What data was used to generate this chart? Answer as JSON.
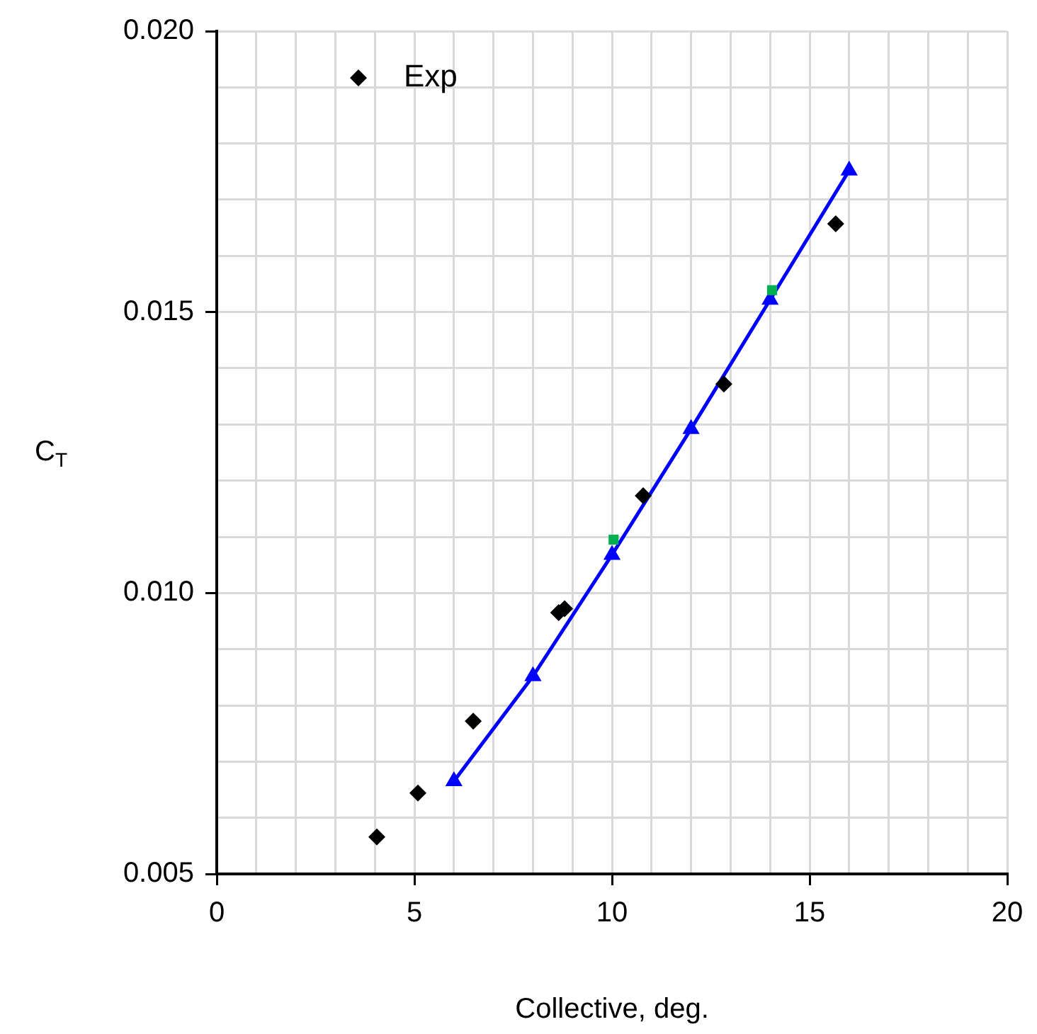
{
  "chart_data": {
    "type": "scatter",
    "xlabel": "Collective, deg.",
    "ylabel": "C$_{T}$",
    "xlim": [
      0,
      20
    ],
    "ylim": [
      0.005,
      0.02
    ],
    "xticks": [
      0,
      {
        "value": 1,
        "label": null
      },
      {
        "value": 2,
        "label": null
      },
      {
        "value": 3,
        "label": null
      },
      {
        "value": 4,
        "label": null
      },
      5,
      {
        "value": 6,
        "label": null
      },
      {
        "value": 7,
        "label": null
      },
      {
        "value": 8,
        "label": null
      },
      {
        "value": 9,
        "label": null
      },
      10,
      {
        "value": 11,
        "label": null
      },
      {
        "value": 12,
        "label": null
      },
      {
        "value": 13,
        "label": null
      },
      {
        "value": 14,
        "label": null
      },
      15,
      {
        "value": 16,
        "label": null
      },
      {
        "value": 17,
        "label": null
      },
      {
        "value": 18,
        "label": null
      },
      {
        "value": 19,
        "label": null
      },
      20
    ],
    "yticks": [
      {
        "value": 0.005,
        "label": "0.005"
      },
      {
        "value": 0.006,
        "label": null
      },
      {
        "value": 0.007,
        "label": null
      },
      {
        "value": 0.008,
        "label": null
      },
      {
        "value": 0.009,
        "label": null
      },
      {
        "value": 0.01,
        "label": "0.010"
      },
      {
        "value": 0.011,
        "label": null
      },
      {
        "value": 0.012,
        "label": null
      },
      {
        "value": 0.013,
        "label": null
      },
      {
        "value": 0.014,
        "label": null
      },
      {
        "value": 0.015,
        "label": "0.015"
      },
      {
        "value": 0.016,
        "label": null
      },
      {
        "value": 0.017,
        "label": null
      },
      {
        "value": 0.018,
        "label": null
      },
      {
        "value": 0.019,
        "label": null
      },
      {
        "value": 0.02,
        "label": "0.020"
      }
    ],
    "grid": true,
    "legend": "top left",
    "series": [
      {
        "name": "Exp",
        "marker": "diamond",
        "color": "#000000",
        "x": [
          4.05,
          5.09,
          6.49,
          8.65,
          8.8,
          10.79,
          12.83,
          15.66
        ],
        "values": [
          0.00566,
          0.00644,
          0.00772,
          0.00965,
          0.00972,
          0.01173,
          0.01372,
          0.01657
        ]
      },
      {
        "marker": "square",
        "color": "#00b050",
        "x": [
          10.04,
          14.05
        ],
        "values": [
          0.01095,
          0.01539
        ]
      },
      {
        "type": "line",
        "marker": "triangle",
        "line_style": "solid",
        "color": "#0000ff",
        "x": [
          6,
          8,
          10,
          12,
          14,
          16
        ],
        "values": [
          0.00665,
          0.00852,
          0.01068,
          0.01292,
          0.01522,
          0.01752
        ]
      }
    ]
  }
}
